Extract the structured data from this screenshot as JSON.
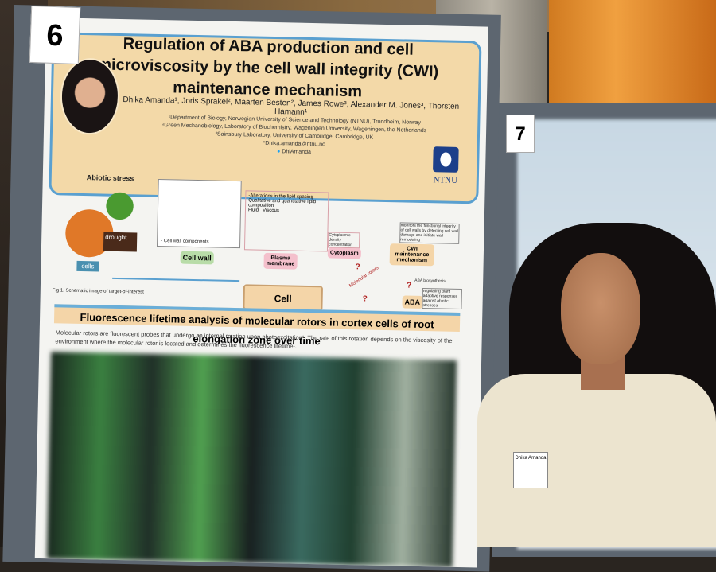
{
  "poster": {
    "board_number": "6",
    "title": "Regulation of ABA production and cell microviscosity by the cell wall integrity (CWI) maintenance mechanism",
    "authors": "Dhika Amanda¹, Joris Sprakel², Maarten Besten², James Rowe³, Alexander M. Jones³, Thorsten Hamann¹",
    "affiliations": [
      "¹Department of Biology, Norwegian University of Science and Technology (NTNU), Trondheim, Norway",
      "²Green Mechanobiology, Laboratory of Biochemistry, Wageningen University, Wageningen, the Netherlands",
      "³Sainsbury Laboratory, University of Cambridge, Cambridge, UK"
    ],
    "email": "*Dhika.amanda@ntnu.no",
    "twitter": "DhiAmanda",
    "logo": "NTNU",
    "figure": {
      "abiotic_stress": "Abiotic stress",
      "drought": "drought",
      "cells": "cells",
      "cell_wall": "Cell wall",
      "cell_wall_components": "- Cell wall components",
      "membrane_note": "-Alterations in the lipid spacing -Qualitative and quantitative lipid composition",
      "fluid": "Fluid",
      "viscous": "Viscous",
      "plasma_membrane": "Plasma membrane",
      "cytoplasm": "Cytoplasm",
      "cytoplasm_note": "Cytoplasmic density concentration",
      "cell_microviscosity": "Cell microviscosity",
      "molecular_rotors": "Molecular rotors",
      "cwi": "CWI maintenance mechanism",
      "cwi_note": "monitors the functional integrity of cell walls by detecting cell wall damage and initiate wall remodeling",
      "aba_biosynthesis": "ABA biosynthesis",
      "aba": "ABA",
      "aba_note": "regulating plant adaptive responses against abiotic stresses",
      "question": "?",
      "caption": "Fig 1. Schematic image of target-of-interest"
    },
    "section_title": "Fluorescence lifetime analysis of molecular rotors in cortex cells of root elongation zone over time",
    "section_text": "Molecular rotors are fluorescent probes that undergo an internal rotation upon photoexcitation¹. The rate of this rotation depends on the viscosity of the environment where the molecular rotor is located and determines the fluorescence lifetime¹."
  },
  "neighbor_board_number": "7",
  "name_badge": "Dhika Amanda",
  "colors": {
    "header": "#f3d9a8",
    "header_border": "#5aa0d0",
    "ntnu_blue": "#1c3f8a",
    "wood": "#f0a040"
  }
}
